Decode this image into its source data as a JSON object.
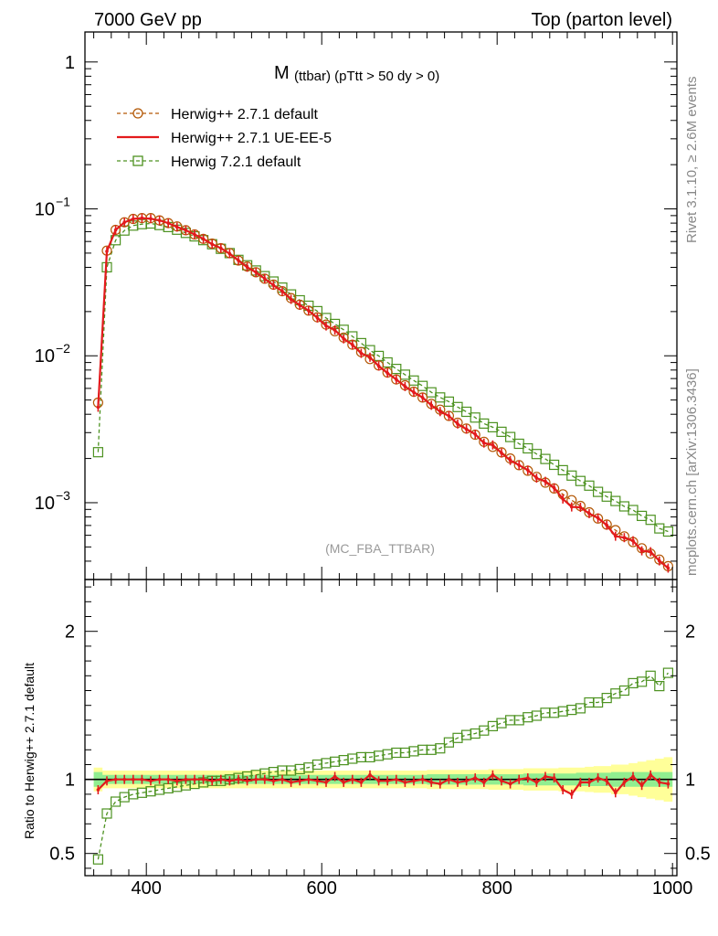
{
  "header": {
    "left": "7000 GeV pp",
    "right": "Top (parton level)"
  },
  "side": {
    "rivet": "Rivet 3.1.10, ≥ 2.6M events",
    "mcplots": "mcplots.cern.ch [arXiv:1306.3436]"
  },
  "chart_data": {
    "type": "line",
    "title_main": "M",
    "title_rest": "(ttbar) (pTtt > 50 dy > 0)",
    "watermark": "(MC_FBA_TTBAR)",
    "ratio_ylabel": "Ratio to Herwig++ 2.7.1 default",
    "x": [
      345,
      355,
      365,
      375,
      385,
      395,
      405,
      415,
      425,
      435,
      445,
      455,
      465,
      475,
      485,
      495,
      505,
      515,
      525,
      535,
      545,
      555,
      565,
      575,
      585,
      595,
      605,
      615,
      625,
      635,
      645,
      655,
      665,
      675,
      685,
      695,
      705,
      715,
      725,
      735,
      745,
      755,
      765,
      775,
      785,
      795,
      805,
      815,
      825,
      835,
      845,
      855,
      865,
      875,
      885,
      895,
      905,
      915,
      925,
      935,
      945,
      955,
      965,
      975,
      985,
      995
    ],
    "xlim": [
      330,
      1005
    ],
    "main_ylim": [
      0.0003,
      1.6
    ],
    "main_yscale": "log",
    "main_yticks": [
      {
        "value": 1,
        "label": "1",
        "exp": ""
      },
      {
        "value": 0.1,
        "label": "10",
        "exp": "−1"
      },
      {
        "value": 0.01,
        "label": "10",
        "exp": "−2"
      },
      {
        "value": 0.001,
        "label": "10",
        "exp": "−3"
      }
    ],
    "ratio_ylim": [
      0.35,
      2.35
    ],
    "ratio_yticks": [
      {
        "value": 2,
        "label": "2"
      },
      {
        "value": 1,
        "label": "1"
      },
      {
        "value": 0.5,
        "label": "0.5"
      }
    ],
    "xticks": [
      {
        "value": 400,
        "label": "400"
      },
      {
        "value": 600,
        "label": "600"
      },
      {
        "value": 800,
        "label": "800"
      },
      {
        "value": 1000,
        "label": "1000"
      }
    ],
    "legend_position": "top-left",
    "series": [
      {
        "name": "Herwig++ 2.7.1 default",
        "color": "#b35806",
        "style": "dashed",
        "marker": "circle",
        "values": [
          0.0048,
          0.052,
          0.072,
          0.081,
          0.0855,
          0.0865,
          0.0865,
          0.0835,
          0.08,
          0.076,
          0.0715,
          0.067,
          0.0625,
          0.058,
          0.054,
          0.05,
          0.0445,
          0.0405,
          0.037,
          0.0335,
          0.0305,
          0.0275,
          0.0247,
          0.0223,
          0.0203,
          0.0183,
          0.0163,
          0.0147,
          0.0133,
          0.0119,
          0.0106,
          0.0095,
          0.0086,
          0.0077,
          0.0069,
          0.0063,
          0.0057,
          0.0052,
          0.0047,
          0.0043,
          0.0039,
          0.0035,
          0.0032,
          0.0029,
          0.0026,
          0.0024,
          0.0022,
          0.002,
          0.0018,
          0.00165,
          0.0015,
          0.00137,
          0.00125,
          0.00114,
          0.00104,
          0.00095,
          0.00086,
          0.00078,
          0.00071,
          0.00065,
          0.00059,
          0.00054,
          0.00049,
          0.00045,
          0.00041,
          0.00037
        ]
      },
      {
        "name": "Herwig++ 2.7.1 UE-EE-5",
        "color": "#e31a1c",
        "style": "solid",
        "marker": "none",
        "ratio": [
          0.93,
          0.99,
          1.0,
          1.0,
          1.0,
          1.0,
          0.99,
          1.0,
          1.0,
          0.99,
          1.0,
          1.0,
          1.0,
          0.99,
          1.0,
          0.99,
          1.0,
          0.99,
          1.0,
          1.0,
          0.99,
          1.0,
          0.98,
          0.99,
          1.0,
          0.99,
          0.98,
          1.02,
          0.98,
          1.0,
          0.98,
          1.03,
          0.99,
          0.99,
          1.0,
          0.98,
          0.99,
          1.0,
          0.98,
          0.97,
          1.0,
          0.98,
          0.99,
          1.01,
          0.98,
          1.03,
          0.99,
          0.97,
          1.0,
          1.01,
          0.98,
          1.02,
          1.01,
          0.93,
          0.9,
          0.98,
          0.98,
          1.01,
          0.99,
          0.91,
          0.98,
          1.02,
          0.96,
          1.03,
          0.98,
          0.97
        ]
      },
      {
        "name": "Herwig 7.2.1 default",
        "color": "#4d9221",
        "style": "dashed",
        "marker": "square",
        "ratio": [
          0.46,
          0.77,
          0.85,
          0.88,
          0.9,
          0.91,
          0.92,
          0.93,
          0.94,
          0.95,
          0.96,
          0.97,
          0.98,
          0.99,
          0.99,
          1.0,
          1.01,
          1.02,
          1.03,
          1.04,
          1.05,
          1.06,
          1.06,
          1.07,
          1.08,
          1.1,
          1.11,
          1.12,
          1.13,
          1.14,
          1.15,
          1.15,
          1.16,
          1.17,
          1.18,
          1.18,
          1.19,
          1.2,
          1.2,
          1.21,
          1.25,
          1.28,
          1.3,
          1.31,
          1.33,
          1.36,
          1.38,
          1.4,
          1.4,
          1.42,
          1.43,
          1.45,
          1.45,
          1.46,
          1.47,
          1.48,
          1.52,
          1.52,
          1.55,
          1.58,
          1.6,
          1.65,
          1.66,
          1.7,
          1.63,
          1.72
        ]
      }
    ],
    "band_inner_halfwidth": [
      0.05,
      0.03,
      0.03,
      0.03,
      0.03,
      0.03,
      0.03,
      0.03,
      0.03,
      0.03,
      0.03,
      0.03,
      0.03,
      0.03,
      0.03,
      0.03,
      0.03,
      0.03,
      0.03,
      0.03,
      0.03,
      0.03,
      0.03,
      0.03,
      0.03,
      0.03,
      0.03,
      0.03,
      0.03,
      0.03,
      0.03,
      0.03,
      0.03,
      0.03,
      0.03,
      0.03,
      0.03,
      0.03,
      0.035,
      0.035,
      0.035,
      0.035,
      0.035,
      0.035,
      0.035,
      0.035,
      0.035,
      0.035,
      0.035,
      0.04,
      0.04,
      0.04,
      0.04,
      0.04,
      0.04,
      0.045,
      0.045,
      0.045,
      0.045,
      0.05,
      0.05,
      0.05,
      0.05,
      0.05,
      0.05,
      0.05
    ],
    "band_outer_halfwidth": [
      0.08,
      0.06,
      0.06,
      0.06,
      0.06,
      0.06,
      0.06,
      0.06,
      0.06,
      0.06,
      0.06,
      0.06,
      0.06,
      0.06,
      0.06,
      0.06,
      0.06,
      0.06,
      0.06,
      0.06,
      0.06,
      0.06,
      0.06,
      0.06,
      0.06,
      0.06,
      0.06,
      0.06,
      0.06,
      0.06,
      0.06,
      0.06,
      0.06,
      0.06,
      0.06,
      0.06,
      0.06,
      0.06,
      0.065,
      0.065,
      0.065,
      0.065,
      0.065,
      0.065,
      0.065,
      0.07,
      0.07,
      0.07,
      0.07,
      0.075,
      0.075,
      0.075,
      0.075,
      0.08,
      0.08,
      0.08,
      0.085,
      0.09,
      0.09,
      0.1,
      0.1,
      0.11,
      0.12,
      0.13,
      0.14,
      0.15
    ],
    "colors": {
      "band_inner": "#90ee90",
      "band_outer": "#ffff99",
      "reference_line": "#000000",
      "side_text": "#888888",
      "watermark": "#999999"
    }
  }
}
